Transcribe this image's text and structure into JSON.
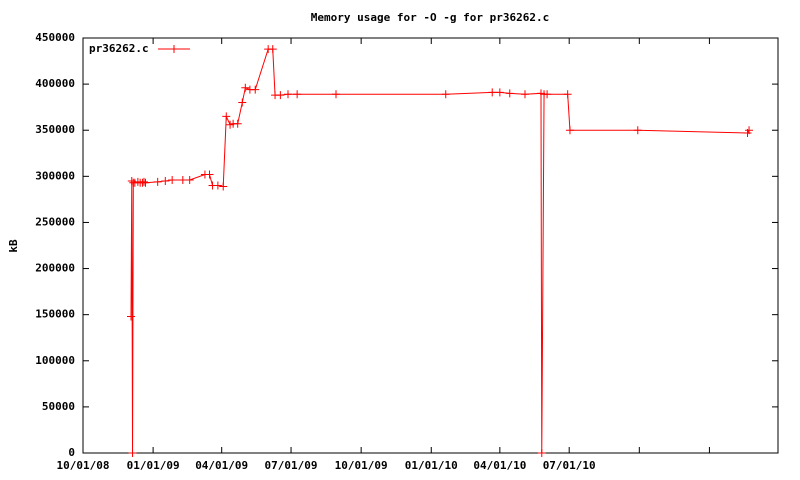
{
  "chart_data": {
    "type": "line",
    "title": "Memory usage for -O -g for pr36262.c",
    "y_label": "kB",
    "legend_position": "top-left",
    "x": [
      "12/03/08",
      "12/04/08",
      "12/05/08",
      "12/06/08",
      "12/08/08",
      "12/12/08",
      "12/15/08",
      "12/18/08",
      "12/20/08",
      "12/22/08",
      "01/07/09",
      "01/17/09",
      "01/26/09",
      "02/09/09",
      "02/18/09",
      "03/10/09",
      "03/16/09",
      "03/20/09",
      "03/27/09",
      "04/03/09",
      "04/07/09",
      "04/12/09",
      "04/16/09",
      "04/22/09",
      "04/28/09",
      "05/02/09",
      "05/08/09",
      "05/15/09",
      "06/01/09",
      "06/07/09",
      "06/10/09",
      "06/17/09",
      "06/27/09",
      "07/09/09",
      "08/29/09",
      "01/20/10",
      "03/22/10",
      "04/01/10",
      "04/14/10",
      "05/04/10",
      "05/25/10",
      "05/26/10",
      "05/29/10",
      "06/02/10",
      "06/29/10",
      "07/02/10",
      "09/29/10",
      "02/20/11",
      "02/22/11"
    ],
    "series": [
      {
        "name": "pr36262.c",
        "color": "#ff0000",
        "values": [
          148000,
          295000,
          0,
          293000,
          293000,
          294000,
          293000,
          293000,
          294000,
          293000,
          294000,
          295000,
          296000,
          296000,
          296000,
          302000,
          302000,
          290000,
          290000,
          289000,
          365000,
          356000,
          357000,
          357000,
          380000,
          396000,
          394000,
          394000,
          438000,
          438000,
          388000,
          388000,
          389000,
          389000,
          389000,
          389000,
          391000,
          391000,
          390000,
          389000,
          390000,
          0,
          389000,
          389000,
          389000,
          350000,
          350000,
          347000,
          350000
        ]
      }
    ],
    "xlim": [
      "10/01/08",
      "04/01/11"
    ],
    "xticks": [
      "10/01/08",
      "01/01/09",
      "04/01/09",
      "07/01/09",
      "10/01/09",
      "01/01/10",
      "04/01/10",
      "07/01/10",
      {
        "value": "10/01/10",
        "label": null
      },
      {
        "value": "01/01/11",
        "label": null
      },
      {
        "value": "04/01/11",
        "label": null
      }
    ],
    "ylim": [
      0,
      450000
    ],
    "yticks": [
      0,
      50000,
      100000,
      150000,
      200000,
      250000,
      300000,
      350000,
      400000,
      450000
    ],
    "grid": false
  }
}
